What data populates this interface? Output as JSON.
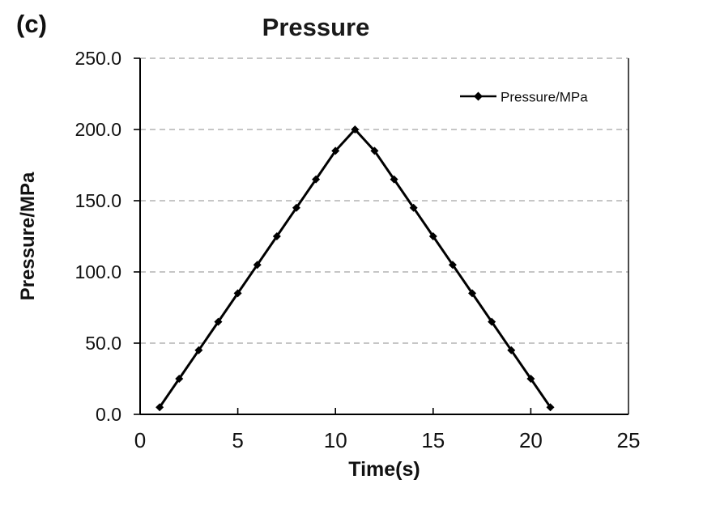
{
  "figure": {
    "corner_label": "(c)"
  },
  "chart_data": {
    "type": "line",
    "title": "Pressure",
    "xlabel": "Time(s)",
    "ylabel": "Pressure/MPa",
    "legend": {
      "label": "Pressure/MPa",
      "position": "inside-top-right",
      "marker": "diamond"
    },
    "x": [
      1,
      2,
      3,
      4,
      5,
      6,
      7,
      8,
      9,
      10,
      11,
      12,
      13,
      14,
      15,
      16,
      17,
      18,
      19,
      20,
      21
    ],
    "series": [
      {
        "name": "Pressure/MPa",
        "values": [
          5,
          25,
          45,
          65,
          85,
          105,
          125,
          145,
          165,
          185,
          200,
          185,
          165,
          145,
          125,
          105,
          85,
          65,
          45,
          25,
          5
        ]
      }
    ],
    "xlim": [
      0,
      25
    ],
    "ylim": [
      0,
      250
    ],
    "xticks": [
      0,
      5,
      10,
      15,
      20,
      25
    ],
    "xtick_labels": [
      "0",
      "5",
      "10",
      "15",
      "20",
      "25"
    ],
    "yticks": [
      0,
      50,
      100,
      150,
      200,
      250
    ],
    "ytick_labels": [
      "0.0",
      "50.0",
      "100.0",
      "150.0",
      "200.0",
      "250.0"
    ],
    "grid": {
      "horizontal": true,
      "style": "dashed",
      "color": "#b3b3b3"
    },
    "line_color": "#000000",
    "axis_color": "#000000",
    "text_color": "#111111",
    "marker": "diamond",
    "background": "#ffffff"
  }
}
